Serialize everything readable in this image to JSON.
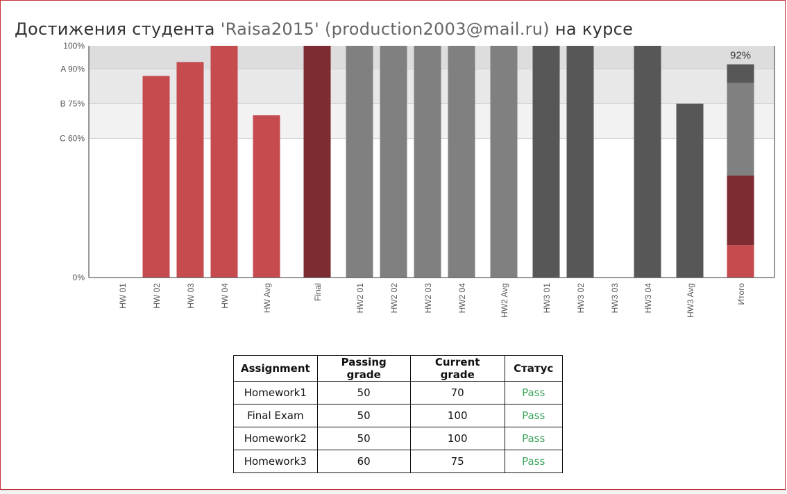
{
  "page": {
    "title_prefix": "Достижения студента",
    "title_user": "'Raisa2015' (production2003@mail.ru)",
    "title_suffix": "на курсе"
  },
  "chart_data": {
    "type": "bar",
    "y_ticks": [
      {
        "value": 0,
        "label": "0%"
      },
      {
        "value": 60,
        "label": "C 60%"
      },
      {
        "value": 75,
        "label": "B 75%"
      },
      {
        "value": 90,
        "label": "A 90%"
      },
      {
        "value": 100,
        "label": "100%"
      }
    ],
    "ylim": [
      0,
      100
    ],
    "grade_bands": [
      {
        "from": 60,
        "to": 75,
        "color": "#f2f2f2"
      },
      {
        "from": 75,
        "to": 90,
        "color": "#e8e8e8"
      },
      {
        "from": 90,
        "to": 100,
        "color": "#dddddd"
      }
    ],
    "band_line_color": "#cfcfcf",
    "categories": [
      "HW 01",
      "HW 02",
      "HW 03",
      "HW 04",
      "HW Avg",
      "Final",
      "HW2 01",
      "HW2 02",
      "HW2 03",
      "HW2 04",
      "HW2 Avg",
      "HW3 01",
      "HW3 02",
      "HW3 03",
      "HW3 04",
      "HW3 Avg",
      "Итого"
    ],
    "values": [
      0,
      87,
      93,
      100,
      70,
      100,
      100,
      100,
      100,
      100,
      100,
      100,
      100,
      0,
      100,
      75,
      null
    ],
    "colors": [
      "#c64b4f",
      "#c64b4f",
      "#c64b4f",
      "#c64b4f",
      "#c64b4f",
      "#7d2c31",
      "#808080",
      "#808080",
      "#808080",
      "#808080",
      "#808080",
      "#575757",
      "#575757",
      "#575757",
      "#575757",
      "#575757",
      "#575757"
    ],
    "stacked_total": {
      "category": "Итого",
      "label": "92%",
      "segments": [
        {
          "value": 14,
          "color": "#c64b4f"
        },
        {
          "value": 30,
          "color": "#7d2c31"
        },
        {
          "value": 40,
          "color": "#808080"
        },
        {
          "value": 8,
          "color": "#575757"
        }
      ]
    }
  },
  "table": {
    "headers": [
      "Assignment",
      "Passing grade",
      "Current grade",
      "Статус"
    ],
    "rows": [
      [
        "Homework1",
        "50",
        "70",
        "Pass"
      ],
      [
        "Final Exam",
        "50",
        "100",
        "Pass"
      ],
      [
        "Homework2",
        "50",
        "100",
        "Pass"
      ],
      [
        "Homework3",
        "60",
        "75",
        "Pass"
      ]
    ],
    "status_color": "#3aa35b"
  }
}
